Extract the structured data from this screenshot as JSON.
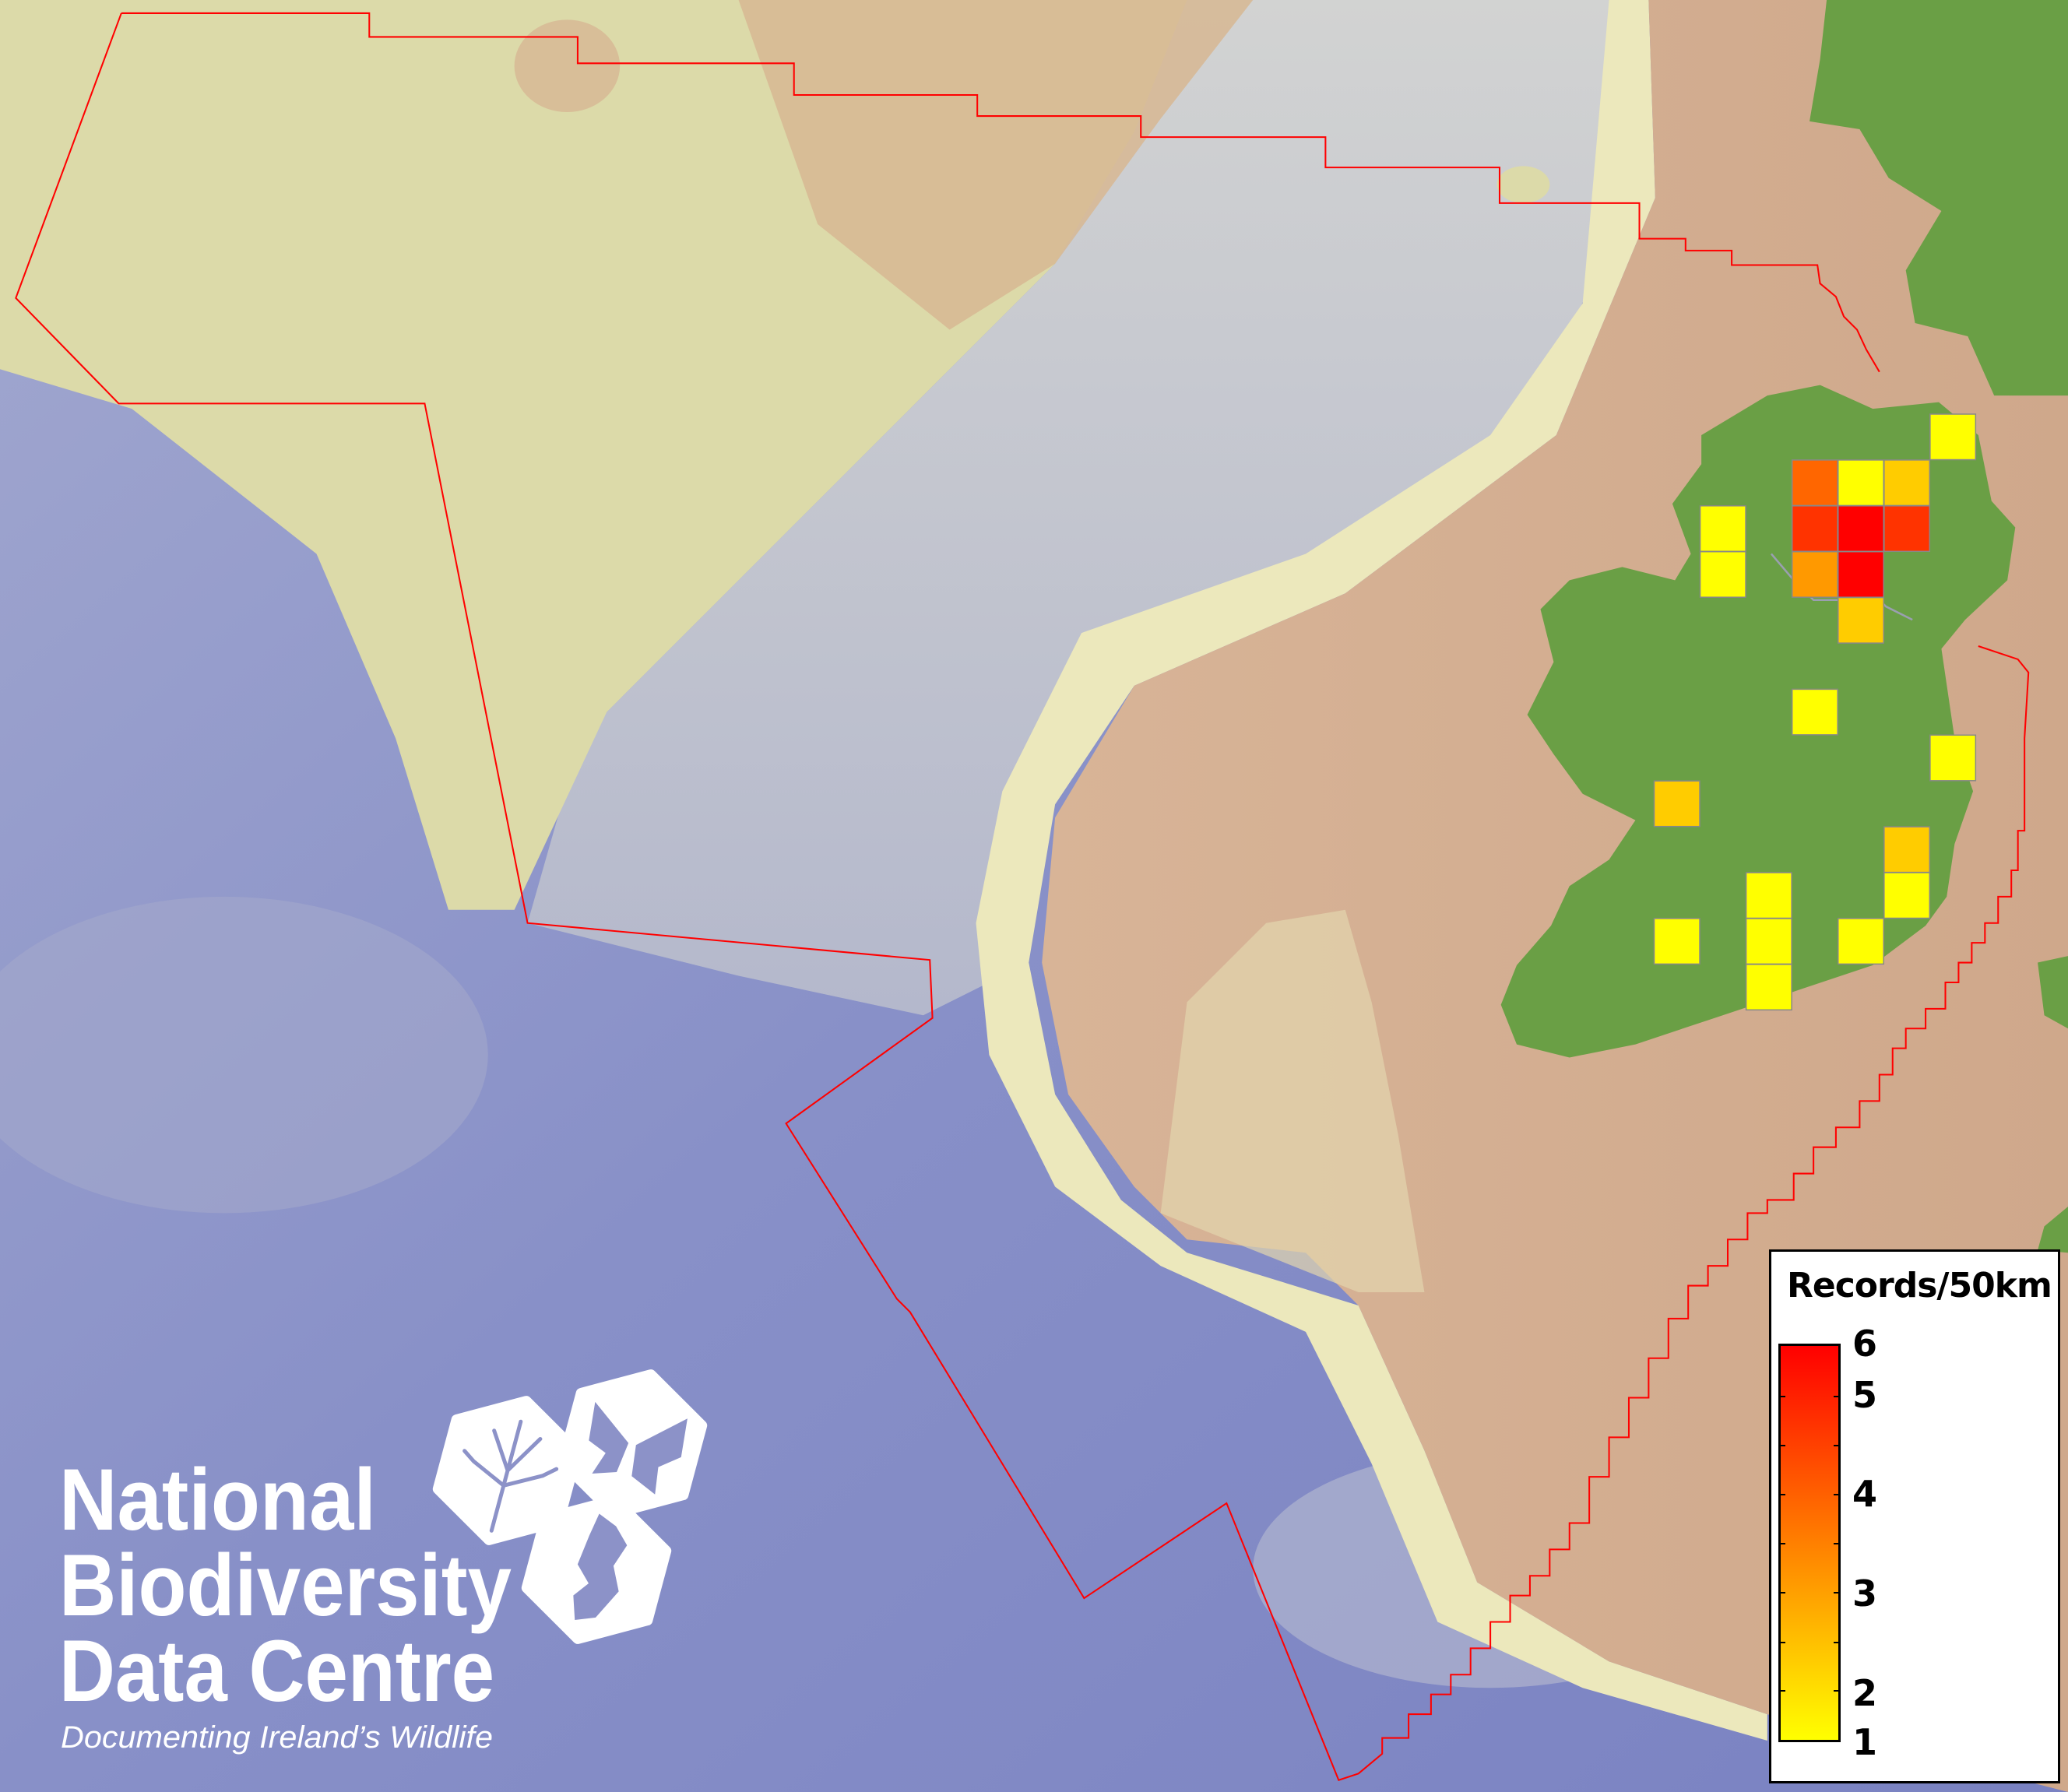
{
  "map": {
    "colors": {
      "deep_ocean": "#8088c6",
      "slope": "#c4c8d2",
      "plateau": "#dedcae",
      "shelf": "#d4ad8e",
      "land": "#6a9f45",
      "boundary": "#ff0000",
      "cell_border": "#888888"
    },
    "grid_cells": [
      {
        "value": 1,
        "color": "#ffff00"
      },
      {
        "value": 4,
        "color": "#ff6600"
      },
      {
        "value": 1,
        "color": "#ffff00"
      },
      {
        "value": 2,
        "color": "#ffcc00"
      },
      {
        "value": 1,
        "color": "#ffff00"
      },
      {
        "value": 5,
        "color": "#ff3300"
      },
      {
        "value": 6,
        "color": "#ff0000"
      },
      {
        "value": 5,
        "color": "#ff3300"
      },
      {
        "value": 1,
        "color": "#ffff00"
      },
      {
        "value": 3,
        "color": "#ff9900"
      },
      {
        "value": 6,
        "color": "#ff0000"
      },
      {
        "value": 2,
        "color": "#ffcc00"
      },
      {
        "value": 1,
        "color": "#ffff00"
      },
      {
        "value": 1,
        "color": "#ffff00"
      },
      {
        "value": 2,
        "color": "#ffcc00"
      },
      {
        "value": 2,
        "color": "#ffcc00"
      },
      {
        "value": 1,
        "color": "#ffff00"
      },
      {
        "value": 1,
        "color": "#ffff00"
      },
      {
        "value": 1,
        "color": "#ffff00"
      },
      {
        "value": 1,
        "color": "#ffff00"
      },
      {
        "value": 1,
        "color": "#ffff00"
      },
      {
        "value": 1,
        "color": "#ffff00"
      }
    ]
  },
  "legend": {
    "title": "Records/50km",
    "min": 1,
    "max": 6,
    "color_low": "#ffff00",
    "color_high": "#ff0000",
    "labels": [
      "6",
      "5",
      "4",
      "3",
      "2",
      "1"
    ]
  },
  "logo": {
    "line1": "National",
    "line2": "Biodiversity",
    "line3": "Data Centre",
    "tagline": "Documenting Ireland’s Wildlife",
    "icons": [
      "tree-icon",
      "butterfly-icon",
      "seahorse-icon"
    ]
  }
}
